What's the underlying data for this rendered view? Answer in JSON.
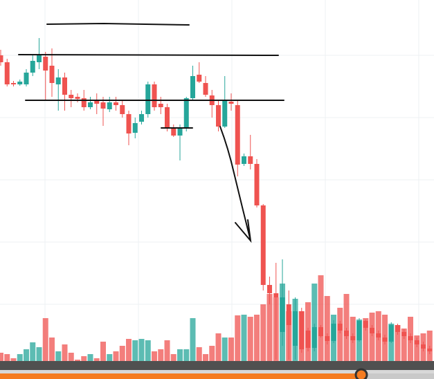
{
  "chart_data": {
    "type": "candlestick",
    "open": [
      468,
      458,
      428,
      426,
      426,
      443,
      458,
      466,
      453,
      426,
      436,
      411,
      408,
      406,
      393,
      402,
      400,
      390,
      400,
      396,
      383,
      356,
      372,
      383,
      426,
      398,
      393,
      363,
      352,
      363,
      406,
      440,
      428,
      410,
      396,
      365,
      401,
      396,
      311,
      322,
      311,
      251,
      136,
      124,
      68,
      108,
      48,
      98,
      70,
      45,
      75,
      62,
      55,
      80,
      70,
      62,
      56,
      84,
      74,
      66,
      60,
      54,
      78,
      68,
      62,
      56,
      50,
      44
    ],
    "high": [
      476,
      463,
      431,
      433,
      448,
      468,
      493,
      473,
      478,
      448,
      443,
      418,
      413,
      418,
      408,
      413,
      408,
      408,
      408,
      403,
      388,
      378,
      388,
      430,
      430,
      408,
      398,
      368,
      368,
      408,
      453,
      458,
      438,
      418,
      403,
      438,
      413,
      403,
      326,
      353,
      318,
      253,
      148,
      168,
      173,
      128,
      118,
      103,
      74,
      80,
      78,
      66,
      85,
      84,
      74,
      66,
      88,
      86,
      78,
      70,
      64,
      82,
      80,
      72,
      66,
      60,
      54,
      48
    ],
    "low": [
      453,
      423,
      423,
      424,
      423,
      438,
      448,
      403,
      408,
      388,
      388,
      393,
      400,
      388,
      390,
      383,
      366,
      386,
      388,
      378,
      338,
      348,
      368,
      378,
      388,
      383,
      358,
      350,
      316,
      358,
      403,
      428,
      408,
      378,
      358,
      363,
      388,
      293,
      308,
      303,
      248,
      128,
      108,
      28,
      48,
      28,
      28,
      38,
      40,
      40,
      60,
      50,
      52,
      66,
      58,
      52,
      54,
      70,
      62,
      56,
      50,
      52,
      64,
      58,
      52,
      46,
      40,
      36
    ],
    "close": [
      458,
      426,
      426,
      430,
      443,
      460,
      468,
      446,
      428,
      436,
      411,
      406,
      405,
      393,
      400,
      398,
      391,
      400,
      396,
      383,
      355,
      370,
      383,
      426,
      393,
      393,
      363,
      352,
      363,
      406,
      438,
      430,
      411,
      396,
      365,
      403,
      398,
      310,
      322,
      311,
      251,
      136,
      124,
      118,
      118,
      78,
      98,
      43,
      45,
      75,
      62,
      55,
      80,
      70,
      62,
      56,
      84,
      74,
      66,
      60,
      54,
      78,
      68,
      62,
      56,
      50,
      44,
      40
    ],
    "volume": [
      12,
      10,
      4,
      10,
      17,
      27,
      20,
      62,
      34,
      14,
      24,
      12,
      2,
      7,
      10,
      4,
      28,
      10,
      14,
      22,
      32,
      30,
      32,
      30,
      14,
      17,
      30,
      10,
      17,
      17,
      62,
      20,
      10,
      22,
      40,
      34,
      34,
      66,
      67,
      64,
      67,
      82,
      97,
      92,
      112,
      72,
      90,
      72,
      85,
      112,
      124,
      94,
      67,
      77,
      97,
      64,
      60,
      62,
      70,
      72,
      67,
      54,
      52,
      47,
      64,
      37,
      40,
      44
    ],
    "ylim": [
      0,
      548
    ],
    "volume_ylim": [
      0,
      130
    ],
    "up_color": "#26a69a",
    "down_color": "#ef5350"
  }
}
